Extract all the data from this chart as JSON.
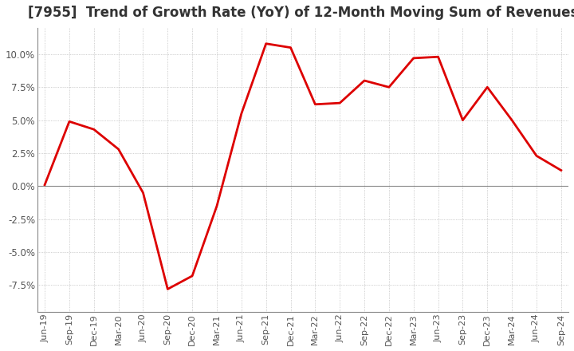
{
  "title": "[7955]  Trend of Growth Rate (YoY) of 12-Month Moving Sum of Revenues",
  "title_fontsize": 12,
  "line_color": "#dd0000",
  "background_color": "#ffffff",
  "plot_background": "#ffffff",
  "grid_color": "#aaaaaa",
  "zero_line_color": "#888888",
  "ylim": [
    -9.5,
    12.0
  ],
  "yticks": [
    -7.5,
    -5.0,
    -2.5,
    0.0,
    2.5,
    5.0,
    7.5,
    10.0
  ],
  "x_labels": [
    "Jun-19",
    "Sep-19",
    "Dec-19",
    "Mar-20",
    "Jun-20",
    "Sep-20",
    "Dec-20",
    "Mar-21",
    "Jun-21",
    "Sep-21",
    "Dec-21",
    "Mar-22",
    "Jun-22",
    "Sep-22",
    "Dec-22",
    "Mar-23",
    "Jun-23",
    "Sep-23",
    "Dec-23",
    "Mar-24",
    "Jun-24",
    "Sep-24"
  ],
  "y_values": [
    0.1,
    4.9,
    4.3,
    2.8,
    -0.5,
    -7.8,
    -6.8,
    -1.5,
    5.5,
    10.8,
    10.5,
    6.2,
    6.3,
    8.0,
    7.5,
    9.7,
    9.8,
    5.0,
    7.5,
    5.0,
    2.3,
    1.2
  ]
}
